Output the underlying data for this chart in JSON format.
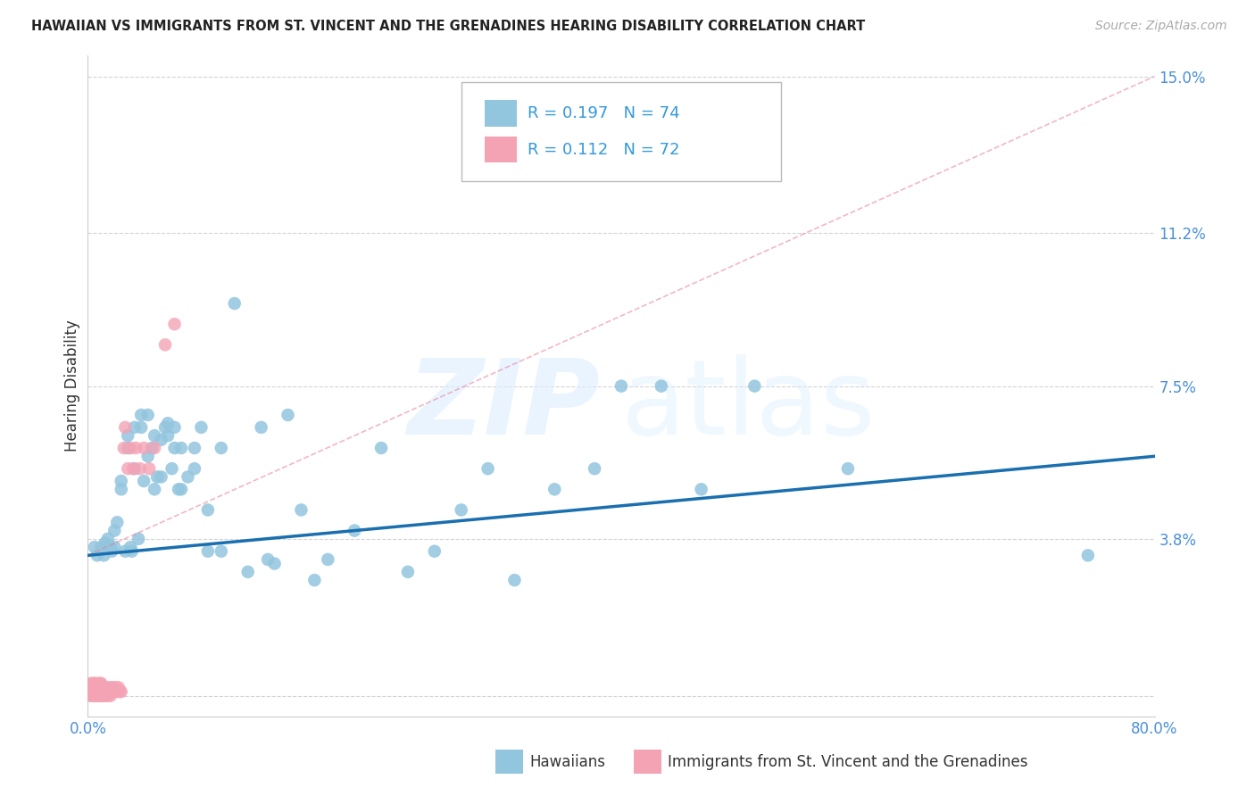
{
  "title": "HAWAIIAN VS IMMIGRANTS FROM ST. VINCENT AND THE GRENADINES HEARING DISABILITY CORRELATION CHART",
  "source": "Source: ZipAtlas.com",
  "ylabel": "Hearing Disability",
  "xlim": [
    0.0,
    0.8
  ],
  "ylim": [
    -0.005,
    0.155
  ],
  "ytick_positions": [
    0.0,
    0.038,
    0.075,
    0.112,
    0.15
  ],
  "ytick_labels": [
    "",
    "3.8%",
    "7.5%",
    "11.2%",
    "15.0%"
  ],
  "xtick_positions": [
    0.0,
    0.1,
    0.2,
    0.3,
    0.4,
    0.5,
    0.6,
    0.7,
    0.8
  ],
  "xtick_labels": [
    "0.0%",
    "",
    "",
    "",
    "",
    "",
    "",
    "",
    "80.0%"
  ],
  "series1_color": "#92c5de",
  "series2_color": "#f4a3b5",
  "trend1_color": "#1a6faf",
  "trend2_color": "#e87c9a",
  "legend_label1": "R = 0.197   N = 74",
  "legend_label2": "R = 0.112   N = 72",
  "bottom_label1": "Hawaiians",
  "bottom_label2": "Immigrants from St. Vincent and the Grenadines",
  "watermark_zip": "ZIP",
  "watermark_atlas": "atlas",
  "hx": [
    0.005,
    0.007,
    0.01,
    0.012,
    0.013,
    0.015,
    0.015,
    0.017,
    0.018,
    0.02,
    0.02,
    0.022,
    0.025,
    0.025,
    0.028,
    0.03,
    0.03,
    0.032,
    0.033,
    0.035,
    0.035,
    0.038,
    0.04,
    0.04,
    0.042,
    0.045,
    0.045,
    0.048,
    0.05,
    0.05,
    0.052,
    0.055,
    0.055,
    0.058,
    0.06,
    0.06,
    0.063,
    0.065,
    0.065,
    0.068,
    0.07,
    0.07,
    0.075,
    0.08,
    0.08,
    0.085,
    0.09,
    0.09,
    0.1,
    0.1,
    0.11,
    0.12,
    0.13,
    0.135,
    0.14,
    0.15,
    0.16,
    0.17,
    0.18,
    0.2,
    0.22,
    0.24,
    0.26,
    0.28,
    0.3,
    0.32,
    0.35,
    0.38,
    0.4,
    0.43,
    0.46,
    0.5,
    0.57,
    0.75
  ],
  "hy": [
    0.036,
    0.034,
    0.036,
    0.034,
    0.037,
    0.036,
    0.038,
    0.036,
    0.035,
    0.036,
    0.04,
    0.042,
    0.05,
    0.052,
    0.035,
    0.06,
    0.063,
    0.036,
    0.035,
    0.055,
    0.065,
    0.038,
    0.065,
    0.068,
    0.052,
    0.058,
    0.068,
    0.06,
    0.05,
    0.063,
    0.053,
    0.062,
    0.053,
    0.065,
    0.063,
    0.066,
    0.055,
    0.065,
    0.06,
    0.05,
    0.06,
    0.05,
    0.053,
    0.055,
    0.06,
    0.065,
    0.035,
    0.045,
    0.035,
    0.06,
    0.095,
    0.03,
    0.065,
    0.033,
    0.032,
    0.068,
    0.045,
    0.028,
    0.033,
    0.04,
    0.06,
    0.03,
    0.035,
    0.045,
    0.055,
    0.028,
    0.05,
    0.055,
    0.075,
    0.075,
    0.05,
    0.075,
    0.055,
    0.034
  ],
  "svgx": [
    0.001,
    0.001,
    0.002,
    0.002,
    0.002,
    0.003,
    0.003,
    0.003,
    0.004,
    0.004,
    0.004,
    0.004,
    0.005,
    0.005,
    0.005,
    0.005,
    0.006,
    0.006,
    0.006,
    0.007,
    0.007,
    0.007,
    0.007,
    0.008,
    0.008,
    0.008,
    0.009,
    0.009,
    0.009,
    0.009,
    0.01,
    0.01,
    0.01,
    0.01,
    0.011,
    0.011,
    0.011,
    0.012,
    0.012,
    0.012,
    0.013,
    0.013,
    0.013,
    0.014,
    0.014,
    0.015,
    0.015,
    0.016,
    0.016,
    0.017,
    0.017,
    0.018,
    0.019,
    0.019,
    0.02,
    0.021,
    0.022,
    0.023,
    0.024,
    0.025,
    0.027,
    0.028,
    0.03,
    0.032,
    0.034,
    0.036,
    0.039,
    0.042,
    0.046,
    0.05,
    0.058,
    0.065
  ],
  "svgy": [
    0.001,
    0.002,
    0.0,
    0.001,
    0.003,
    0.0,
    0.001,
    0.002,
    0.0,
    0.001,
    0.002,
    0.003,
    0.0,
    0.001,
    0.002,
    0.003,
    0.0,
    0.001,
    0.002,
    0.0,
    0.001,
    0.002,
    0.003,
    0.0,
    0.001,
    0.002,
    0.0,
    0.001,
    0.002,
    0.003,
    0.0,
    0.001,
    0.002,
    0.003,
    0.0,
    0.001,
    0.002,
    0.0,
    0.001,
    0.002,
    0.0,
    0.001,
    0.002,
    0.001,
    0.002,
    0.0,
    0.001,
    0.001,
    0.002,
    0.0,
    0.001,
    0.002,
    0.001,
    0.002,
    0.001,
    0.002,
    0.001,
    0.002,
    0.001,
    0.001,
    0.06,
    0.065,
    0.055,
    0.06,
    0.055,
    0.06,
    0.055,
    0.06,
    0.055,
    0.06,
    0.085,
    0.09
  ],
  "blue_trend_x": [
    0.0,
    0.8
  ],
  "blue_trend_y": [
    0.034,
    0.058
  ],
  "pink_trend_x": [
    0.0,
    0.8
  ],
  "pink_trend_y": [
    0.034,
    0.15
  ]
}
